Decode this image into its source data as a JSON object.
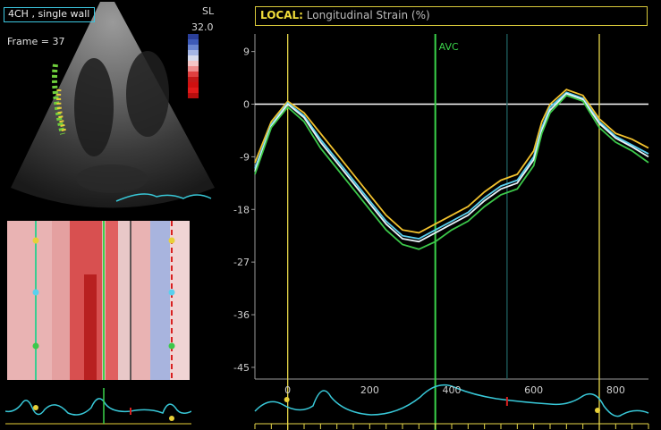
{
  "view_label": "4CH , single wall",
  "frame_label": "Frame = 37",
  "colorbar": {
    "label": "SL",
    "max_value": "32.0",
    "colors": [
      "#2a3f9a",
      "#3d5ab8",
      "#6a86d2",
      "#a5b6e4",
      "#d8dced",
      "#f4c6c6",
      "#ee8c8c",
      "#e04040",
      "#c41818",
      "#d01010",
      "#e21a1a",
      "#b80e0e"
    ]
  },
  "graph": {
    "title_prefix": "LOCAL:",
    "title_text": "Longitudinal Strain (%)",
    "avc_label": "AVC",
    "colors": {
      "segment_lines": "#e8d84a",
      "avc_line": "#3ad24a",
      "ecg": "#38c8d8",
      "zero_line": "#ffffff"
    }
  },
  "chart_data": {
    "type": "line",
    "title": "Longitudinal Strain (%)",
    "xlabel": "",
    "ylabel": "",
    "ylim": [
      -47,
      12
    ],
    "xlim": [
      -80,
      880
    ],
    "y_ticks": [
      9,
      0,
      -9,
      -18,
      -27,
      -36,
      -45
    ],
    "y_tick_labels": [
      "9",
      "0",
      "-9",
      "-18",
      "-27",
      "-36",
      "-45"
    ],
    "x_ticks": [
      0,
      200,
      400,
      600,
      800
    ],
    "x_tick_labels": [
      "0",
      "200",
      "400",
      "600",
      "800"
    ],
    "grid": false,
    "events": {
      "avc": 360
    },
    "x": [
      -80,
      -40,
      0,
      40,
      80,
      120,
      160,
      200,
      240,
      280,
      320,
      360,
      400,
      440,
      480,
      520,
      560,
      600,
      620,
      640,
      680,
      720,
      760,
      800,
      840,
      880
    ],
    "series": [
      {
        "color": "#f2c22e",
        "values": [
          -10,
          -3,
          0.5,
          -1.5,
          -5,
          -8.5,
          -12,
          -15.5,
          -19,
          -21.5,
          -22,
          -20.5,
          -19,
          -17.5,
          -15,
          -13,
          -12,
          -8,
          -3,
          0,
          2.5,
          1.5,
          -2.5,
          -5,
          -6,
          -7.5
        ]
      },
      {
        "color": "#5ad0ee",
        "values": [
          -11,
          -3.5,
          0.2,
          -2,
          -6,
          -9.5,
          -13,
          -16.5,
          -20,
          -22.5,
          -23,
          -21.5,
          -20,
          -18.5,
          -16,
          -14,
          -13,
          -9,
          -4,
          -0.5,
          2,
          1,
          -3,
          -5.5,
          -7,
          -8.5
        ]
      },
      {
        "color": "#e8f4f8",
        "values": [
          -11.5,
          -3.8,
          0,
          -2.3,
          -6.5,
          -10,
          -13.5,
          -17,
          -20.5,
          -23,
          -23.5,
          -22,
          -20.5,
          -19,
          -16.5,
          -14.5,
          -13.5,
          -9.5,
          -4.5,
          -1,
          1.8,
          0.8,
          -3.3,
          -5.8,
          -7.3,
          -9
        ]
      },
      {
        "color": "#3cc84a",
        "values": [
          -12,
          -4,
          -0.5,
          -3,
          -7.5,
          -11,
          -14.5,
          -18,
          -21.5,
          -24,
          -24.8,
          -23.5,
          -21.5,
          -20,
          -17.5,
          -15.5,
          -14.5,
          -10.5,
          -5,
          -1.5,
          1.5,
          0.5,
          -4,
          -6.5,
          -8,
          -10
        ]
      }
    ]
  },
  "ecg": {
    "main_labels_visible": true
  }
}
